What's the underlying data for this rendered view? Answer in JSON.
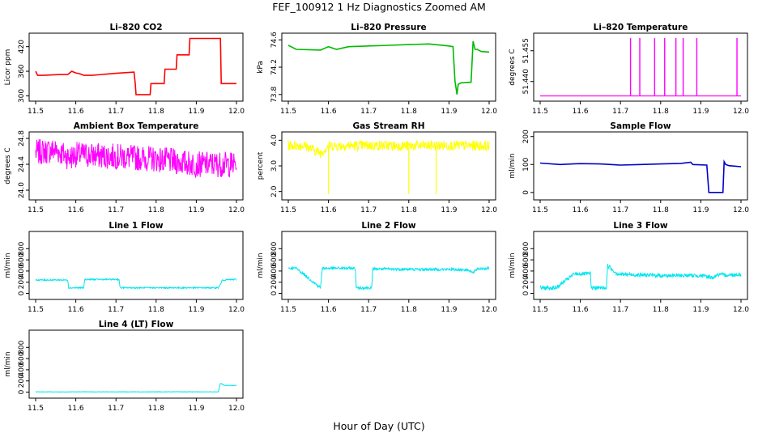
{
  "figure": {
    "title": "FEF_100912  1 Hz Diagnostics Zoomed AM",
    "xlabel": "Hour of Day (UTC)"
  },
  "chart_data": [
    {
      "type": "line",
      "title": "Li–820 CO2",
      "ylabel": "Licor ppm",
      "color": "#ff0000",
      "xlim": [
        11.5,
        12.0
      ],
      "xticks": [
        "11.5",
        "11.6",
        "11.7",
        "11.8",
        "11.9",
        "12.0"
      ],
      "ylim": [
        295,
        445
      ],
      "yticks": [
        "300",
        "360",
        "420"
      ],
      "series": [
        {
          "x": [
            11.5,
            11.505,
            11.52,
            11.56,
            11.58,
            11.59,
            11.6,
            11.61,
            11.62,
            11.64,
            11.7,
            11.745,
            11.748,
            11.75,
            11.785,
            11.787,
            11.82,
            11.822,
            11.85,
            11.852,
            11.882,
            11.884,
            11.96,
            11.962,
            11.97,
            12.0
          ],
          "y": [
            360,
            350,
            350,
            352,
            352,
            360,
            356,
            354,
            350,
            350,
            355,
            358,
            330,
            303,
            303,
            330,
            330,
            365,
            365,
            400,
            400,
            440,
            440,
            330,
            330,
            330
          ]
        }
      ]
    },
    {
      "type": "line",
      "title": "Li–820 Pressure",
      "ylabel": "kPa",
      "color": "#00bb00",
      "xlim": [
        11.5,
        12.0
      ],
      "xticks": [
        "11.5",
        "11.6",
        "11.7",
        "11.8",
        "11.9",
        "12.0"
      ],
      "ylim": [
        73.75,
        74.65
      ],
      "yticks": [
        "73.8",
        "74.2",
        "74.6"
      ],
      "series": [
        {
          "x": [
            11.5,
            11.52,
            11.58,
            11.6,
            11.62,
            11.65,
            11.7,
            11.75,
            11.8,
            11.85,
            11.9,
            11.91,
            11.915,
            11.92,
            11.923,
            11.93,
            11.955,
            11.96,
            11.965,
            11.97,
            11.98,
            12.0
          ],
          "y": [
            74.52,
            74.46,
            74.45,
            74.5,
            74.46,
            74.5,
            74.51,
            74.52,
            74.53,
            74.54,
            74.51,
            74.5,
            74.0,
            73.8,
            73.95,
            73.97,
            73.98,
            74.58,
            74.46,
            74.46,
            74.43,
            74.42
          ]
        }
      ]
    },
    {
      "type": "line",
      "title": "Li–820 Temperature",
      "ylabel": "degrees C",
      "color": "#ff00ff",
      "xlim": [
        11.5,
        12.0
      ],
      "xticks": [
        "11.5",
        "11.6",
        "11.7",
        "11.8",
        "11.9",
        "12.0"
      ],
      "ylim": [
        51.432,
        51.462
      ],
      "yticks": [
        "51.440",
        "51.455"
      ],
      "baseline": 51.433,
      "spikes": [
        11.725,
        11.748,
        11.785,
        11.81,
        11.838,
        11.856,
        11.89,
        11.99
      ]
    },
    {
      "type": "line",
      "title": "Ambient Box Temperature",
      "ylabel": "degrees C",
      "color": "#ff00ff",
      "xlim": [
        11.5,
        12.0
      ],
      "xticks": [
        "11.5",
        "11.6",
        "11.7",
        "11.8",
        "11.9",
        "12.0"
      ],
      "ylim": [
        23.9,
        24.85
      ],
      "yticks": [
        "24.0",
        "24.4",
        "24.8"
      ],
      "series": [
        {
          "x": [
            11.5,
            11.55,
            11.585,
            11.6,
            11.7,
            11.8,
            11.9,
            12.0
          ],
          "y": [
            24.58,
            24.62,
            24.5,
            24.55,
            24.52,
            24.48,
            24.4,
            24.4
          ]
        }
      ],
      "noise": 0.2
    },
    {
      "type": "line",
      "title": "Gas Stream RH",
      "ylabel": "percent",
      "color": "#ffff00",
      "xlim": [
        11.5,
        12.0
      ],
      "xticks": [
        "11.5",
        "11.6",
        "11.7",
        "11.8",
        "11.9",
        "12.0"
      ],
      "ylim": [
        1.8,
        4.2
      ],
      "yticks": [
        "2.0",
        "3.0",
        "4.0"
      ],
      "series": [
        {
          "x": [
            11.5,
            11.54,
            11.58,
            11.6,
            11.7,
            11.8,
            11.9,
            12.0
          ],
          "y": [
            3.8,
            3.8,
            3.5,
            3.78,
            3.8,
            3.78,
            3.8,
            3.78
          ]
        }
      ],
      "noise": 0.2,
      "dips": [
        {
          "x": 11.6,
          "y": 1.9
        },
        {
          "x": 11.8,
          "y": 1.9
        },
        {
          "x": 11.868,
          "y": 1.9
        }
      ]
    },
    {
      "type": "line",
      "title": "Sample Flow",
      "ylabel": "ml/min",
      "color": "#0000cc",
      "xlim": [
        11.5,
        12.0
      ],
      "xticks": [
        "11.5",
        "11.6",
        "11.7",
        "11.8",
        "11.9",
        "12.0"
      ],
      "ylim": [
        -15,
        205
      ],
      "yticks": [
        "0",
        "100",
        "200"
      ],
      "series": [
        {
          "x": [
            11.5,
            11.55,
            11.58,
            11.6,
            11.65,
            11.7,
            11.75,
            11.8,
            11.85,
            11.875,
            11.88,
            11.915,
            11.92,
            11.955,
            11.958,
            11.962,
            11.97,
            12.0
          ],
          "y": [
            105,
            100,
            102,
            103,
            102,
            98,
            100,
            102,
            104,
            108,
            100,
            98,
            0,
            0,
            110,
            100,
            96,
            92
          ]
        }
      ]
    },
    {
      "type": "line",
      "title": "Line 1 Flow",
      "ylabel": "ml/min",
      "color": "#00e5ee",
      "xlim": [
        11.5,
        12.0
      ],
      "xticks": [
        "11.5",
        "11.6",
        "11.7",
        "11.8",
        "11.9",
        "12.0"
      ],
      "ylim": [
        -50,
        1050
      ],
      "yticks": [
        "0",
        "200",
        "400",
        "600",
        "800"
      ],
      "series": [
        {
          "x": [
            11.5,
            11.58,
            11.582,
            11.62,
            11.622,
            11.708,
            11.71,
            11.955,
            11.96,
            11.965,
            12.0
          ],
          "y": [
            240,
            240,
            100,
            100,
            250,
            250,
            100,
            100,
            160,
            240,
            250
          ]
        }
      ],
      "noise": 12
    },
    {
      "type": "line",
      "title": "Line 2 Flow",
      "ylabel": "ml/min",
      "color": "#00e5ee",
      "xlim": [
        11.5,
        12.0
      ],
      "xticks": [
        "11.5",
        "11.6",
        "11.7",
        "11.8",
        "11.9",
        "12.0"
      ],
      "ylim": [
        -50,
        1050
      ],
      "yticks": [
        "0",
        "200",
        "400",
        "600",
        "800"
      ],
      "series": [
        {
          "x": [
            11.5,
            11.52,
            11.58,
            11.585,
            11.667,
            11.669,
            11.708,
            11.71,
            11.8,
            11.9,
            11.95,
            11.96,
            11.97,
            12.0
          ],
          "y": [
            450,
            450,
            100,
            450,
            450,
            100,
            100,
            440,
            430,
            430,
            420,
            360,
            440,
            450
          ]
        }
      ],
      "noise": 25
    },
    {
      "type": "line",
      "title": "Line 3 Flow",
      "ylabel": "ml/min",
      "color": "#00e5ee",
      "xlim": [
        11.5,
        12.0
      ],
      "xticks": [
        "11.5",
        "11.6",
        "11.7",
        "11.8",
        "11.9",
        "12.0"
      ],
      "ylim": [
        -50,
        1050
      ],
      "yticks": [
        "0",
        "200",
        "400",
        "600",
        "800"
      ],
      "series": [
        {
          "x": [
            11.5,
            11.54,
            11.585,
            11.625,
            11.627,
            11.665,
            11.668,
            11.69,
            11.7,
            11.8,
            11.9,
            11.93,
            11.94,
            11.97,
            12.0
          ],
          "y": [
            100,
            100,
            350,
            350,
            100,
            100,
            500,
            360,
            340,
            320,
            320,
            280,
            330,
            330,
            340
          ]
        }
      ],
      "noise": 35
    },
    {
      "type": "line",
      "title": "Line 4 (LT) Flow",
      "ylabel": "ml/min",
      "color": "#00e5ee",
      "xlim": [
        11.5,
        12.0
      ],
      "xticks": [
        "11.5",
        "11.6",
        "11.7",
        "11.8",
        "11.9",
        "12.0"
      ],
      "ylim": [
        -50,
        1050
      ],
      "yticks": [
        "0",
        "200",
        "400",
        "600",
        "800"
      ],
      "series": [
        {
          "x": [
            11.5,
            11.58,
            11.6,
            11.7,
            11.8,
            11.9,
            11.955,
            11.96,
            11.97,
            12.0
          ],
          "y": [
            5,
            3,
            5,
            5,
            5,
            5,
            5,
            160,
            120,
            120
          ]
        }
      ],
      "noise": 4
    }
  ]
}
